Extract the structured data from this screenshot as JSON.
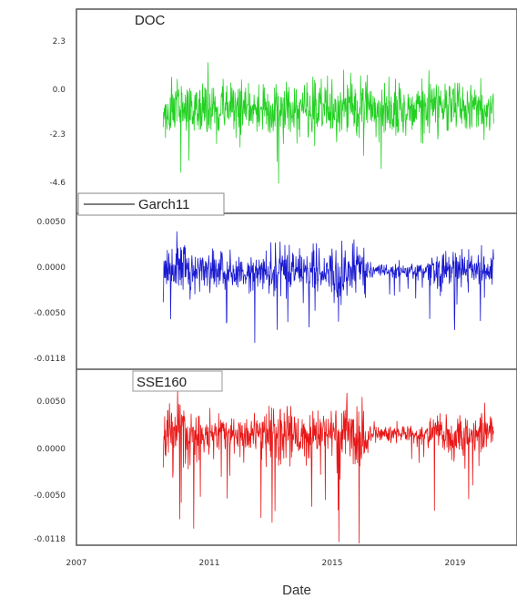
{
  "chart_data": {
    "type": "line",
    "xlabel": "Date",
    "x_ticks": [
      "2007",
      "2011",
      "2015",
      "2019"
    ],
    "xlim": [
      2007,
      2020.2
    ],
    "series_x_range": [
      2009.6,
      2019.5
    ],
    "panels": [
      {
        "name": "DOC",
        "color": "#22d022",
        "yticks": [
          "2.3",
          "0.0",
          "-2.3",
          "-4.6"
        ],
        "ylim": [
          -4.6,
          4.4
        ],
        "noise_scale": 1.3,
        "regime": "uniform",
        "legend_style": "plain"
      },
      {
        "name": "Garch11",
        "color": "#1a1ad0",
        "yticks": [
          "0.0050",
          "0.0000",
          "-0.0050",
          "-0.0118"
        ],
        "ylim": [
          -0.0118,
          0.0068
        ],
        "noise_scale": 0.0022,
        "regime": "volatility-clustered",
        "legend_style": "line"
      },
      {
        "name": "SSE160",
        "color": "#e81818",
        "yticks": [
          "0.0050",
          "0.0000",
          "-0.0050",
          "-0.0118"
        ],
        "ylim": [
          -0.0118,
          0.0068
        ],
        "noise_scale": 0.0022,
        "regime": "volatility-clustered",
        "legend_style": "box"
      }
    ]
  }
}
